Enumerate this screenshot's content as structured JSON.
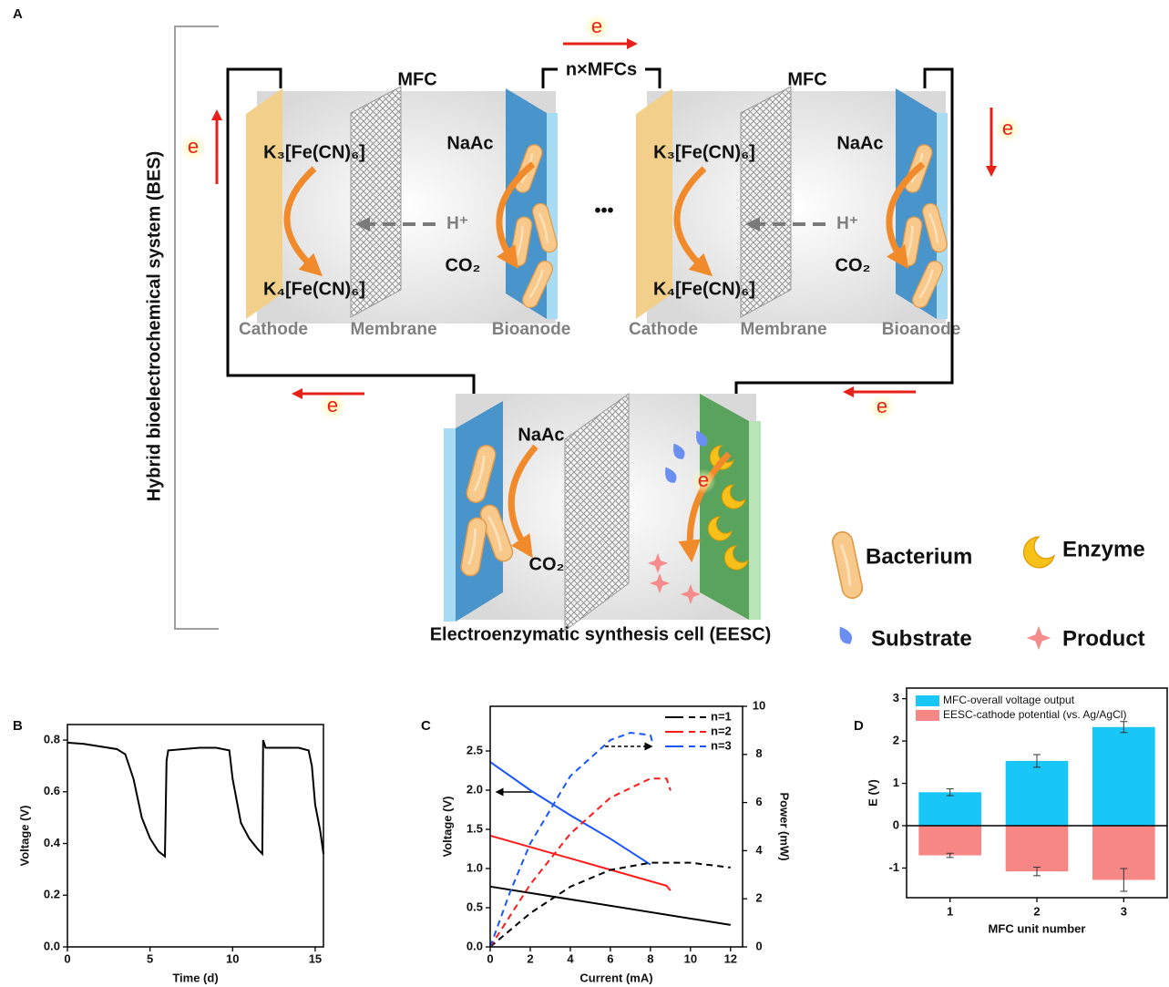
{
  "diagram": {
    "panel_label": "A",
    "system_label": "Hybrid bioelectrochemical system (BES)",
    "series_label": "n×MFCs",
    "ellipsis": "•••",
    "electron": "e",
    "mfc_cells": [
      {
        "title": "MFC",
        "oxidant": "K₃[Fe(CN)₆]",
        "reduced": "K₄[Fe(CN)₆]",
        "substrate": "NaAc",
        "proton": "H⁺",
        "product": "CO₂",
        "cathode": "Cathode",
        "membrane": "Membrane",
        "anode": "Bioanode"
      },
      {
        "title": "MFC",
        "oxidant": "K₃[Fe(CN)₆]",
        "reduced": "K₄[Fe(CN)₆]",
        "substrate": "NaAc",
        "proton": "H⁺",
        "product": "CO₂",
        "cathode": "Cathode",
        "membrane": "Membrane",
        "anode": "Bioanode"
      }
    ],
    "eesc": {
      "substrate": "NaAc",
      "product": "CO₂",
      "title": "Electroenzymatic synthesis cell (EESC)"
    },
    "legend": [
      "Bacterium",
      "Enzyme",
      "Substrate",
      "Product"
    ]
  },
  "chart_data": [
    {
      "type": "line",
      "panel_label": "B",
      "xlabel": "Time (d)",
      "ylabel": "Voltage (V)",
      "color": "#000000",
      "x": [
        0,
        1,
        2,
        3,
        3.5,
        4,
        4.5,
        5,
        5.5,
        5.9,
        6.0,
        6.1,
        7,
        8,
        9,
        9.8,
        10.0,
        10.5,
        11,
        11.5,
        11.8,
        11.85,
        12,
        13,
        14,
        14.6,
        14.8,
        15,
        15.3,
        15.5
      ],
      "values": [
        0.79,
        0.785,
        0.775,
        0.765,
        0.745,
        0.65,
        0.5,
        0.42,
        0.37,
        0.35,
        0.72,
        0.76,
        0.765,
        0.77,
        0.77,
        0.76,
        0.65,
        0.48,
        0.42,
        0.38,
        0.36,
        0.8,
        0.77,
        0.77,
        0.77,
        0.76,
        0.7,
        0.55,
        0.45,
        0.36
      ],
      "xlim": [
        0,
        15.5
      ],
      "ylim": [
        0,
        0.86
      ],
      "xticks": [
        0,
        5,
        10,
        15
      ],
      "yticks": [
        {
          "value": 0,
          "label": "0.0"
        },
        0.2,
        0.4,
        0.6,
        0.8
      ]
    },
    {
      "type": "line",
      "panel_label": "C",
      "xlabel": "Current (mA)",
      "ylabel": "Voltage (V)",
      "y2label": "Power (mW)",
      "legend": "upper right",
      "xlim": [
        0,
        12.6
      ],
      "ylim": [
        0,
        3.07
      ],
      "y2lim": [
        0,
        10
      ],
      "xticks": [
        0,
        2,
        4,
        6,
        8,
        10,
        12
      ],
      "yticks": [
        {
          "value": 0,
          "label": "0.0"
        },
        0.5,
        {
          "value": 1,
          "label": "1.0"
        },
        1.5,
        {
          "value": 2,
          "label": "2.0"
        },
        2.5
      ],
      "y2ticks": [
        0,
        2,
        4,
        6,
        8,
        10
      ],
      "series": [
        {
          "name": "n=1",
          "color": "#000000",
          "x": [
            0,
            12
          ],
          "values": [
            0.77,
            0.28
          ]
        },
        {
          "name": "n=2",
          "color": "#ff1a1a",
          "x": [
            0,
            8.8,
            9
          ],
          "values": [
            1.42,
            0.78,
            0.72
          ]
        },
        {
          "name": "n=3",
          "color": "#1a55ff",
          "x": [
            0,
            2,
            4,
            6,
            8
          ],
          "values": [
            2.36,
            2.0,
            1.68,
            1.38,
            1.05
          ]
        },
        {
          "color": "#000000",
          "axis": "y2",
          "line_style": "dashed",
          "x": [
            0,
            2,
            4,
            6,
            8,
            10,
            12
          ],
          "values": [
            0,
            1.4,
            2.5,
            3.2,
            3.5,
            3.5,
            3.3
          ]
        },
        {
          "color": "#ff1a1a",
          "axis": "y2",
          "line_style": "dashed",
          "x": [
            0,
            2,
            4,
            6,
            8,
            8.8,
            9
          ],
          "values": [
            0,
            2.6,
            4.7,
            6.2,
            7.0,
            7.0,
            6.5
          ]
        },
        {
          "color": "#1a55ff",
          "axis": "y2",
          "line_style": "dashed",
          "x": [
            0,
            1,
            2,
            4,
            6,
            7,
            8,
            8.1
          ],
          "values": [
            0,
            2.3,
            4.3,
            7.1,
            8.6,
            8.9,
            8.8,
            8.5
          ]
        }
      ]
    },
    {
      "type": "bar",
      "panel_label": "D",
      "xlabel": "MFC unit number",
      "ylabel": "E (V)",
      "legend": "upper left",
      "categories": [
        "1",
        "2",
        "3"
      ],
      "ylim": [
        -1.7,
        3.25
      ],
      "yticks": [
        -1,
        0,
        1,
        2,
        3
      ],
      "series": [
        {
          "name": "MFC-overall voltage output",
          "color": "#18c6f7",
          "values": [
            0.79,
            1.53,
            2.33
          ],
          "errors": [
            0.08,
            0.15,
            0.13
          ]
        },
        {
          "name": "EESC-cathode potential (vs. Ag/AgCl)",
          "color": "#f78785",
          "values": [
            -0.7,
            -1.08,
            -1.28
          ],
          "errors": [
            0.05,
            0.1,
            0.27
          ]
        }
      ]
    }
  ]
}
